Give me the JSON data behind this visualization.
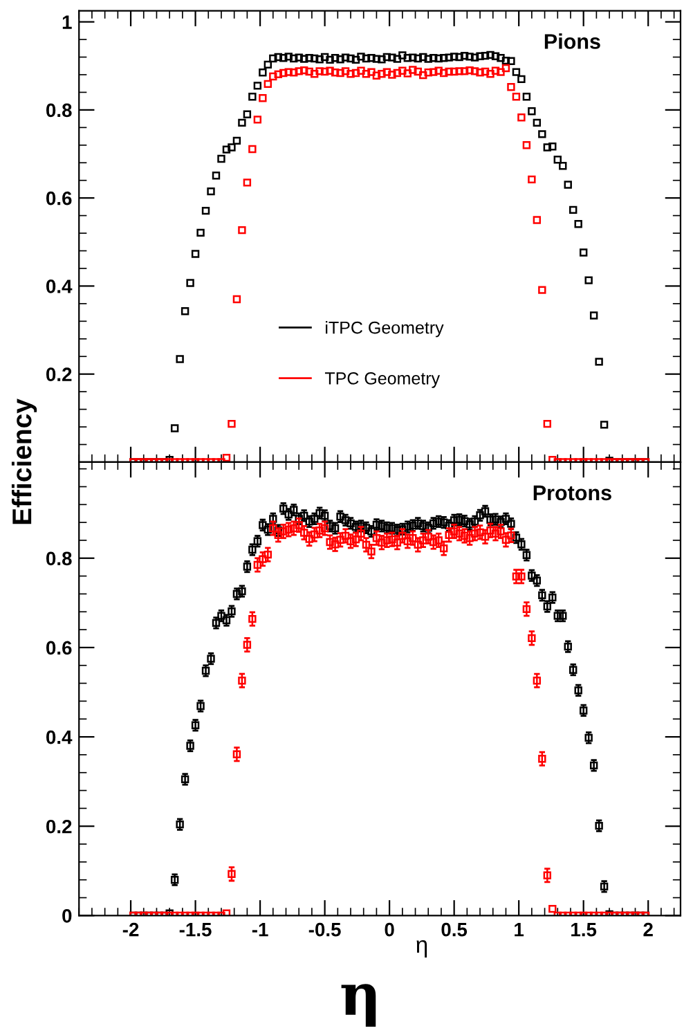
{
  "chart_data": [
    {
      "type": "scatter",
      "title": "Pions",
      "ylabel": "Efficiency",
      "legend": "bottom",
      "marker": "square",
      "tick_labels": "y",
      "x": [
        -1.98,
        -1.94,
        -1.9,
        -1.86,
        -1.82,
        -1.78,
        -1.74,
        -1.7,
        -1.66,
        -1.62,
        -1.58,
        -1.54,
        -1.5,
        -1.46,
        -1.42,
        -1.38,
        -1.34,
        -1.3,
        -1.26,
        -1.22,
        -1.18,
        -1.14,
        -1.1,
        -1.06,
        -1.02,
        -0.98,
        -0.94,
        -0.9,
        -0.86,
        -0.82,
        -0.78,
        -0.74,
        -0.7,
        -0.66,
        -0.62,
        -0.58,
        -0.54,
        -0.5,
        -0.46,
        -0.42,
        -0.38,
        -0.34,
        -0.3,
        -0.26,
        -0.22,
        -0.18,
        -0.14,
        -0.1,
        -0.06,
        -0.02,
        0.02,
        0.06,
        0.1,
        0.14,
        0.18,
        0.22,
        0.26,
        0.3,
        0.34,
        0.38,
        0.42,
        0.46,
        0.5,
        0.54,
        0.58,
        0.62,
        0.66,
        0.7,
        0.74,
        0.78,
        0.82,
        0.86,
        0.9,
        0.94,
        0.98,
        1.02,
        1.06,
        1.1,
        1.14,
        1.18,
        1.22,
        1.26,
        1.3,
        1.34,
        1.38,
        1.42,
        1.46,
        1.5,
        1.54,
        1.58,
        1.62,
        1.66,
        1.7,
        1.74,
        1.78,
        1.82,
        1.86,
        1.9,
        1.94,
        1.98
      ],
      "xlim": [
        -2.4,
        2.25
      ],
      "ylim": [
        0,
        1.025
      ],
      "yticks": [
        0.2,
        0.4,
        0.6,
        0.8,
        1
      ],
      "series": [
        {
          "name": "iTPC Geometry",
          "color": "#000000",
          "values": [
            0,
            0,
            0,
            0,
            0,
            0,
            0,
            0.005,
            0.077,
            0.234,
            0.343,
            0.407,
            0.473,
            0.521,
            0.571,
            0.615,
            0.651,
            0.689,
            0.71,
            0.715,
            0.73,
            0.771,
            0.79,
            0.83,
            0.855,
            0.885,
            0.903,
            0.917,
            0.92,
            0.918,
            0.921,
            0.917,
            0.919,
            0.916,
            0.918,
            0.917,
            0.915,
            0.92,
            0.914,
            0.918,
            0.915,
            0.919,
            0.917,
            0.914,
            0.921,
            0.917,
            0.918,
            0.916,
            0.915,
            0.92,
            0.919,
            0.916,
            0.924,
            0.918,
            0.919,
            0.917,
            0.92,
            0.916,
            0.918,
            0.917,
            0.918,
            0.919,
            0.921,
            0.92,
            0.923,
            0.921,
            0.919,
            0.922,
            0.923,
            0.925,
            0.922,
            0.918,
            0.912,
            0.911,
            0.886,
            0.87,
            0.83,
            0.797,
            0.771,
            0.745,
            0.715,
            0.717,
            0.687,
            0.673,
            0.63,
            0.573,
            0.541,
            0.476,
            0.413,
            0.333,
            0.228,
            0.085,
            0.003,
            0,
            0,
            0,
            0,
            0,
            0,
            0
          ]
        },
        {
          "name": "TPC Geometry",
          "color": "#ff0000",
          "values": [
            0,
            0,
            0,
            0,
            0,
            0,
            0,
            0,
            0,
            0,
            0,
            0,
            0,
            0,
            0,
            0,
            0,
            0,
            0.01,
            0.087,
            0.37,
            0.527,
            0.635,
            0.711,
            0.778,
            0.827,
            0.859,
            0.876,
            0.881,
            0.884,
            0.886,
            0.885,
            0.888,
            0.89,
            0.887,
            0.882,
            0.888,
            0.887,
            0.889,
            0.885,
            0.884,
            0.888,
            0.882,
            0.884,
            0.889,
            0.882,
            0.886,
            0.878,
            0.882,
            0.886,
            0.88,
            0.884,
            0.889,
            0.883,
            0.891,
            0.887,
            0.879,
            0.885,
            0.886,
            0.889,
            0.884,
            0.887,
            0.887,
            0.888,
            0.888,
            0.89,
            0.888,
            0.885,
            0.887,
            0.882,
            0.889,
            0.886,
            0.895,
            0.852,
            0.83,
            0.783,
            0.72,
            0.642,
            0.55,
            0.391,
            0.087,
            0.005,
            0,
            0,
            0,
            0,
            0,
            0,
            0,
            0,
            0,
            0,
            0,
            0,
            0,
            0,
            0,
            0,
            0,
            0
          ]
        }
      ]
    },
    {
      "type": "scatter",
      "title": "Protons",
      "xlabel": "η",
      "annotations": [
        "η"
      ],
      "marker": "square",
      "x": [
        -1.98,
        -1.94,
        -1.9,
        -1.86,
        -1.82,
        -1.78,
        -1.74,
        -1.7,
        -1.66,
        -1.62,
        -1.58,
        -1.54,
        -1.5,
        -1.46,
        -1.42,
        -1.38,
        -1.34,
        -1.3,
        -1.26,
        -1.22,
        -1.18,
        -1.14,
        -1.1,
        -1.06,
        -1.02,
        -0.98,
        -0.94,
        -0.9,
        -0.86,
        -0.82,
        -0.78,
        -0.74,
        -0.7,
        -0.66,
        -0.62,
        -0.58,
        -0.54,
        -0.5,
        -0.46,
        -0.42,
        -0.38,
        -0.34,
        -0.3,
        -0.26,
        -0.22,
        -0.18,
        -0.14,
        -0.1,
        -0.06,
        -0.02,
        0.02,
        0.06,
        0.1,
        0.14,
        0.18,
        0.22,
        0.26,
        0.3,
        0.34,
        0.38,
        0.42,
        0.46,
        0.5,
        0.54,
        0.58,
        0.62,
        0.66,
        0.7,
        0.74,
        0.78,
        0.82,
        0.86,
        0.9,
        0.94,
        0.98,
        1.02,
        1.06,
        1.1,
        1.14,
        1.18,
        1.22,
        1.26,
        1.3,
        1.34,
        1.38,
        1.42,
        1.46,
        1.5,
        1.54,
        1.58,
        1.62,
        1.66,
        1.7,
        1.74,
        1.78,
        1.82,
        1.86,
        1.9,
        1.94,
        1.98
      ],
      "xlim": [
        -2.4,
        2.25
      ],
      "ylim": [
        0,
        1.015
      ],
      "xticks": [
        -2,
        -1.5,
        -1,
        -0.5,
        0,
        0.5,
        1,
        1.5,
        2
      ],
      "yticks": [
        0,
        0.2,
        0.4,
        0.6,
        0.8
      ],
      "series": [
        {
          "color": "#000000",
          "values": [
            0,
            0,
            0,
            0,
            0,
            0,
            0,
            0.005,
            0.08,
            0.204,
            0.305,
            0.38,
            0.426,
            0.469,
            0.548,
            0.575,
            0.655,
            0.671,
            0.661,
            0.681,
            0.72,
            0.726,
            0.781,
            0.819,
            0.838,
            0.874,
            0.864,
            0.888,
            0.862,
            0.911,
            0.898,
            0.908,
            0.888,
            0.895,
            0.882,
            0.888,
            0.901,
            0.895,
            0.872,
            0.867,
            0.893,
            0.885,
            0.878,
            0.87,
            0.872,
            0.868,
            0.86,
            0.875,
            0.872,
            0.868,
            0.867,
            0.863,
            0.865,
            0.87,
            0.873,
            0.878,
            0.872,
            0.868,
            0.878,
            0.882,
            0.88,
            0.873,
            0.885,
            0.886,
            0.883,
            0.876,
            0.882,
            0.896,
            0.905,
            0.886,
            0.887,
            0.881,
            0.888,
            0.877,
            0.846,
            0.831,
            0.807,
            0.761,
            0.75,
            0.717,
            0.692,
            0.712,
            0.671,
            0.671,
            0.602,
            0.55,
            0.504,
            0.459,
            0.398,
            0.336,
            0.201,
            0.065,
            0.003,
            0,
            0,
            0,
            0,
            0,
            0,
            0
          ],
          "errors": [
            null,
            null,
            null,
            null,
            null,
            null,
            null,
            null,
            0.012,
            0.012,
            0.012,
            0.012,
            0.012,
            0.012,
            0.012,
            0.012,
            0.012,
            0.012,
            0.012,
            0.012,
            0.012,
            0.012,
            0.012,
            0.012,
            0.012,
            0.012,
            0.012,
            0.012,
            0.012,
            0.012,
            0.012,
            0.012,
            0.012,
            0.012,
            0.012,
            0.012,
            0.012,
            0.012,
            0.012,
            0.012,
            0.012,
            0.012,
            0.012,
            0.012,
            0.012,
            0.012,
            0.012,
            0.012,
            0.012,
            0.012,
            0.012,
            0.012,
            0.012,
            0.012,
            0.012,
            0.012,
            0.012,
            0.012,
            0.012,
            0.012,
            0.012,
            0.012,
            0.012,
            0.012,
            0.012,
            0.012,
            0.012,
            0.012,
            0.012,
            0.012,
            0.012,
            0.012,
            0.012,
            0.012,
            0.012,
            0.012,
            0.012,
            0.012,
            0.012,
            0.012,
            0.012,
            0.012,
            0.012,
            0.012,
            0.012,
            0.012,
            0.012,
            0.012,
            0.012,
            0.012,
            0.012,
            0.012,
            null,
            null,
            null,
            null,
            null,
            null,
            null,
            null
          ]
        },
        {
          "color": "#ff0000",
          "values": [
            0,
            0,
            0,
            0,
            0,
            0,
            0,
            0,
            0,
            0,
            0,
            0,
            0,
            0,
            0,
            0,
            0,
            0,
            0.005,
            0.093,
            0.361,
            0.526,
            0.606,
            0.664,
            0.785,
            0.798,
            0.808,
            0.867,
            0.852,
            0.86,
            0.864,
            0.867,
            0.874,
            0.857,
            0.843,
            0.853,
            0.862,
            0.867,
            0.836,
            0.831,
            0.841,
            0.85,
            0.838,
            0.842,
            0.855,
            0.83,
            0.815,
            0.845,
            0.835,
            0.84,
            0.842,
            0.835,
            0.85,
            0.838,
            0.845,
            0.83,
            0.84,
            0.848,
            0.836,
            0.84,
            0.822,
            0.852,
            0.86,
            0.855,
            0.85,
            0.845,
            0.855,
            0.858,
            0.848,
            0.862,
            0.855,
            0.86,
            0.841,
            0.851,
            0.759,
            0.759,
            0.686,
            0.621,
            0.526,
            0.351,
            0.09,
            0.015,
            0,
            0,
            0,
            0,
            0,
            0,
            0,
            0,
            0,
            0,
            0,
            0,
            0,
            0,
            0,
            0,
            0,
            0
          ],
          "errors": [
            null,
            null,
            null,
            null,
            null,
            null,
            null,
            null,
            null,
            null,
            null,
            null,
            null,
            null,
            null,
            null,
            null,
            null,
            null,
            0.015,
            0.015,
            0.015,
            0.015,
            0.015,
            0.015,
            0.015,
            0.015,
            0.015,
            0.015,
            0.015,
            0.015,
            0.015,
            0.015,
            0.015,
            0.015,
            0.015,
            0.015,
            0.015,
            0.015,
            0.015,
            0.015,
            0.015,
            0.015,
            0.015,
            0.015,
            0.015,
            0.015,
            0.015,
            0.015,
            0.015,
            0.015,
            0.015,
            0.015,
            0.015,
            0.015,
            0.015,
            0.015,
            0.015,
            0.015,
            0.015,
            0.015,
            0.015,
            0.015,
            0.015,
            0.015,
            0.015,
            0.015,
            0.015,
            0.015,
            0.015,
            0.015,
            0.015,
            0.015,
            0.015,
            0.015,
            0.015,
            0.015,
            0.015,
            0.015,
            0.015,
            0.015,
            null,
            null,
            null,
            null,
            null,
            null,
            null,
            null,
            null,
            null,
            null,
            null,
            null,
            null,
            null,
            null,
            null,
            null,
            null
          ]
        }
      ]
    }
  ]
}
